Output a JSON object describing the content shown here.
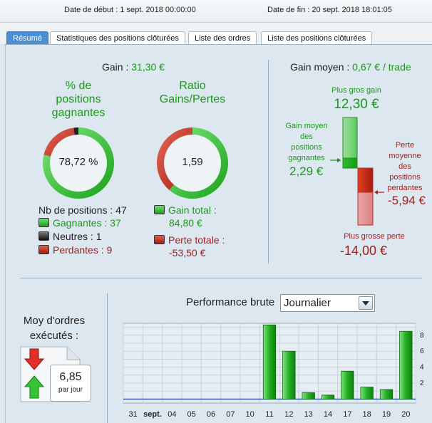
{
  "header": {
    "date_start": "Date de début : 1 sept. 2018 00:00:00",
    "date_end": "Date de fin : 20 sept. 2018 18:01:05"
  },
  "tabs": [
    {
      "label": "Résumé",
      "active": true
    },
    {
      "label": "Statistiques des positions clôturées",
      "active": false
    },
    {
      "label": "Liste des ordres",
      "active": false
    },
    {
      "label": "Liste des positions clôturées",
      "active": false
    }
  ],
  "summary": {
    "gain_label": "Gain : ",
    "gain_value": "31,30 €",
    "gain_moyen_label": "Gain moyen : ",
    "gain_moyen_value": "0,67 € / trade"
  },
  "pct_positions": {
    "title_lines": [
      "% de",
      "positions",
      "gagnantes"
    ],
    "value": "78,72 %",
    "win_fraction": 0.7872,
    "neutral_fraction": 0.0213,
    "loss_fraction": 0.1915
  },
  "ratio": {
    "title_lines": [
      "Ratio",
      "Gains/Pertes"
    ],
    "value": "1,59",
    "gain_fraction": 0.6132,
    "loss_fraction": 0.3868
  },
  "positions_legend": {
    "total": "Nb de positions : 47",
    "gagnantes": "Gagnantes : 37",
    "neutres": "Neutres : 1",
    "perdantes": "Perdantes : 9"
  },
  "totals_legend": {
    "gain_label": "Gain total :",
    "gain_value": "84,80 €",
    "perte_label": "Perte totale :",
    "perte_value": "-53,50 €"
  },
  "gain_range": {
    "plus_gros_gain_label": "Plus gros gain",
    "plus_gros_gain_value": "12,30 €",
    "gain_moyen_lines": [
      "Gain moyen",
      "des",
      "positions",
      "gagnantes"
    ],
    "gain_moyen_value": "2,29 €",
    "perte_moyenne_lines": [
      "Perte",
      "moyenne",
      "des",
      "positions",
      "perdantes"
    ],
    "perte_moyenne_value": "-5,94 €",
    "plus_grosse_perte_label": "Plus grosse perte",
    "plus_grosse_perte_value": "-14,00 €"
  },
  "orders": {
    "title_lines": [
      "Moy d'ordres",
      "exécutés :"
    ],
    "value": "6,85",
    "unit": "par jour"
  },
  "performance": {
    "label": "Performance brute",
    "period": "Journalier"
  },
  "chart_data": {
    "type": "bar",
    "categories": [
      "31",
      "sept.",
      "04",
      "05",
      "06",
      "07",
      "10",
      "11",
      "12",
      "13",
      "14",
      "17",
      "18",
      "19",
      "20"
    ],
    "values": [
      0,
      0,
      0,
      0,
      0,
      0,
      0,
      9.3,
      6.0,
      0.8,
      0.5,
      3.5,
      1.5,
      1.2,
      8.5
    ],
    "yticks": [
      "2",
      "4",
      "6",
      "8"
    ],
    "ylim": [
      -0.5,
      9.5
    ],
    "grid": true,
    "colors": {
      "bar": "#22b022",
      "baseline": "#2a4dbb"
    }
  }
}
